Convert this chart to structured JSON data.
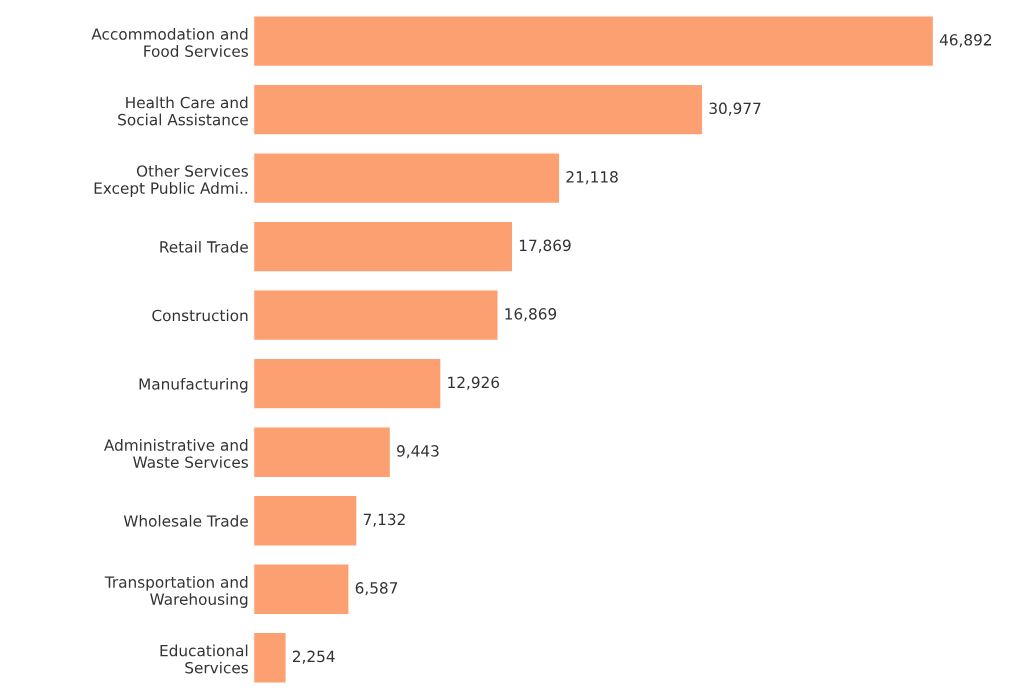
{
  "chart_data": {
    "type": "bar",
    "orientation": "horizontal",
    "categories": [
      "Accommodation and\nFood Services",
      "Health Care and\nSocial Assistance",
      "Other Services\nExcept Public Admi..",
      "Retail Trade",
      "Construction",
      "Manufacturing",
      "Administrative and\nWaste Services",
      "Wholesale Trade",
      "Transportation and\nWarehousing",
      "Educational\nServices"
    ],
    "values": [
      46892,
      30977,
      21118,
      17869,
      16869,
      12926,
      9443,
      7132,
      6587,
      2254
    ],
    "color": "#fca072",
    "value_labels": [
      "46,892",
      "30,977",
      "21,118",
      "17,869",
      "16,869",
      "12,926",
      "9,443",
      "7,132",
      "6,587",
      "2,254"
    ],
    "grid": false,
    "legend": false
  }
}
